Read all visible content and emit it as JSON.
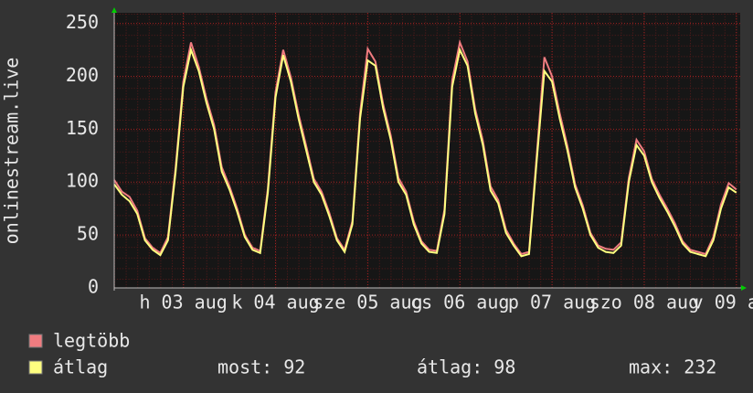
{
  "chart_data": {
    "type": "line",
    "y_label": "onlinestream.live",
    "xlim": [
      0,
      163
    ],
    "ylim": [
      0,
      260
    ],
    "xticks": [
      {
        "value": 18,
        "label": "h 03 aug"
      },
      {
        "value": 42,
        "label": "k 04 aug"
      },
      {
        "value": 66,
        "label": "sze 05 aug"
      },
      {
        "value": 90,
        "label": "cs 06 aug"
      },
      {
        "value": 114,
        "label": "p 07 aug"
      },
      {
        "value": 138,
        "label": "szo 08 aug"
      },
      {
        "value": 162,
        "label": "v 09 aug"
      }
    ],
    "yticks": [
      0,
      50,
      100,
      150,
      200,
      250
    ],
    "grid": true,
    "x": [
      0,
      2,
      4,
      6,
      8,
      10,
      12,
      14,
      16,
      18,
      20,
      22,
      24,
      26,
      28,
      30,
      32,
      34,
      36,
      38,
      40,
      42,
      44,
      46,
      48,
      50,
      52,
      54,
      56,
      58,
      60,
      62,
      64,
      66,
      68,
      70,
      72,
      74,
      76,
      78,
      80,
      82,
      84,
      86,
      88,
      90,
      92,
      94,
      96,
      98,
      100,
      102,
      104,
      106,
      108,
      110,
      112,
      114,
      116,
      118,
      120,
      122,
      124,
      126,
      128,
      130,
      132,
      134,
      136,
      138,
      140,
      142,
      144,
      146,
      148,
      150,
      152,
      154,
      156,
      158,
      160,
      162
    ],
    "series": [
      {
        "name": "legtöbb",
        "color": "#f07c80",
        "values": [
          102,
          91,
          86,
          73,
          47,
          38,
          33,
          48,
          114,
          195,
          232,
          209,
          179,
          154,
          114,
          96,
          75,
          50,
          38,
          35,
          94,
          185,
          225,
          199,
          164,
          134,
          103,
          91,
          71,
          47,
          36,
          63,
          165,
          226,
          214,
          174,
          144,
          104,
          91,
          63,
          44,
          36,
          35,
          74,
          196,
          232,
          214,
          169,
          139,
          96,
          83,
          55,
          42,
          32,
          34,
          125,
          218,
          200,
          165,
          134,
          98,
          78,
          52,
          40,
          37,
          36,
          43,
          104,
          140,
          129,
          103,
          88,
          75,
          61,
          44,
          36,
          34,
          32,
          48,
          79,
          99,
          93
        ]
      },
      {
        "name": "átlag",
        "color": "#ffff80",
        "values": [
          98,
          88,
          82,
          70,
          45,
          36,
          31,
          45,
          110,
          190,
          225,
          205,
          175,
          150,
          110,
          93,
          72,
          48,
          36,
          33,
          90,
          180,
          220,
          195,
          160,
          130,
          100,
          88,
          68,
          45,
          34,
          60,
          160,
          215,
          210,
          170,
          140,
          100,
          88,
          60,
          42,
          34,
          33,
          70,
          190,
          225,
          210,
          165,
          135,
          92,
          80,
          52,
          40,
          30,
          32,
          120,
          205,
          195,
          160,
          130,
          95,
          75,
          50,
          38,
          34,
          33,
          40,
          100,
          135,
          125,
          100,
          85,
          72,
          58,
          42,
          34,
          32,
          30,
          45,
          75,
          95,
          90
        ]
      }
    ],
    "stats": [
      "most: 92",
      "átlag: 98",
      "max: 232"
    ]
  }
}
